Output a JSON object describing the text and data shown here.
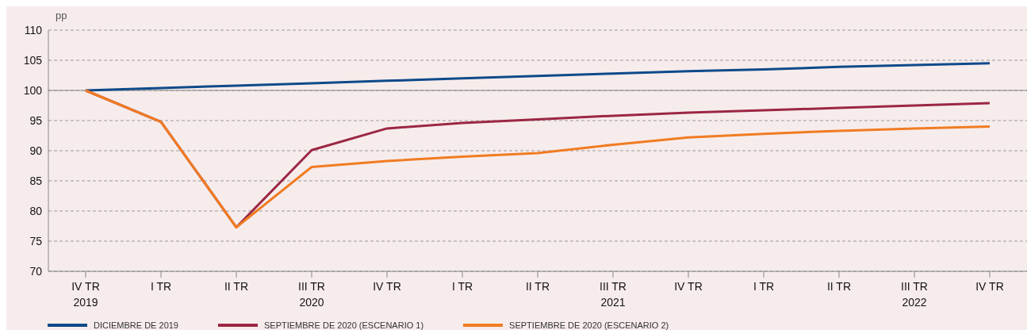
{
  "chart_data": {
    "type": "line",
    "ylabel": "pp",
    "categories": [
      "IV TR\n2019",
      "I TR",
      "II TR",
      "III TR\n2020",
      "IV TR",
      "I TR",
      "II TR",
      "III TR\n2021",
      "IV TR",
      "I TR",
      "II TR",
      "III TR\n2022",
      "IV TR"
    ],
    "series": [
      {
        "name": "DICIEMBRE DE 2019",
        "color": "#0d4a8a",
        "values": [
          100,
          100.4,
          100.8,
          101.2,
          101.6,
          102.0,
          102.4,
          102.8,
          103.2,
          103.5,
          103.9,
          104.2,
          104.5
        ]
      },
      {
        "name": "SEPTIEMBRE DE 2020 (ESCENARIO 1)",
        "color": "#9b2743",
        "values": [
          100,
          94.8,
          77.3,
          90.1,
          93.7,
          94.6,
          95.2,
          95.8,
          96.3,
          96.7,
          97.1,
          97.5,
          97.9
        ]
      },
      {
        "name": "SEPTIEMBRE DE 2020 (ESCENARIO 2)",
        "color": "#f07c22",
        "values": [
          100,
          94.8,
          77.3,
          87.3,
          88.3,
          89.0,
          89.6,
          91.0,
          92.2,
          92.8,
          93.3,
          93.7,
          94.0
        ]
      }
    ],
    "ylim": [
      70,
      110
    ],
    "yticks": [
      70,
      75,
      80,
      85,
      90,
      95,
      100,
      105,
      110
    ],
    "grid": "y",
    "legend": "bottom left",
    "marker": "none",
    "line_style": "solid",
    "ref_lines": [
      {
        "axis": "y",
        "value": 100,
        "color": "#8a8a8a"
      }
    ]
  }
}
